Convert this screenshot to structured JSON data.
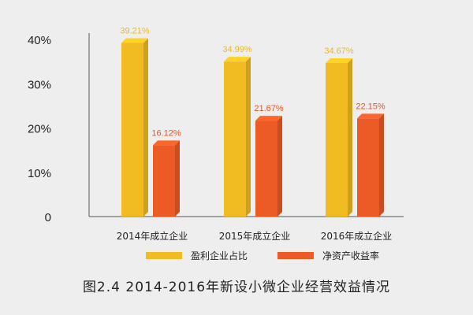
{
  "caption": "图2.4  2014-2016年新设小微企业经营效益情况",
  "colors": {
    "series_1": "#f1bc22",
    "series_2": "#ec5a26",
    "series_1_label": "#f0b81e",
    "series_2_label": "#e85522",
    "axis": "#555555",
    "text": "#222222"
  },
  "chart_data": {
    "type": "bar",
    "categories": [
      "2014年成立企业",
      "2015年成立企业",
      "2016年成立企业"
    ],
    "series": [
      {
        "name": "盈利企业占比",
        "values": [
          39.21,
          34.99,
          34.67
        ],
        "labels": [
          "39.21%",
          "34.99%",
          "34.67%"
        ]
      },
      {
        "name": "净资产收益率",
        "values": [
          16.12,
          21.67,
          22.15
        ],
        "labels": [
          "16.12%",
          "21.67%",
          "22.15%"
        ]
      }
    ],
    "y_ticks": [
      0,
      10,
      20,
      30,
      40
    ],
    "y_tick_labels": [
      "0",
      "10%",
      "20%",
      "30%",
      "40%"
    ],
    "ylim": [
      0,
      40
    ],
    "grid": false,
    "legend_position": "bottom"
  }
}
